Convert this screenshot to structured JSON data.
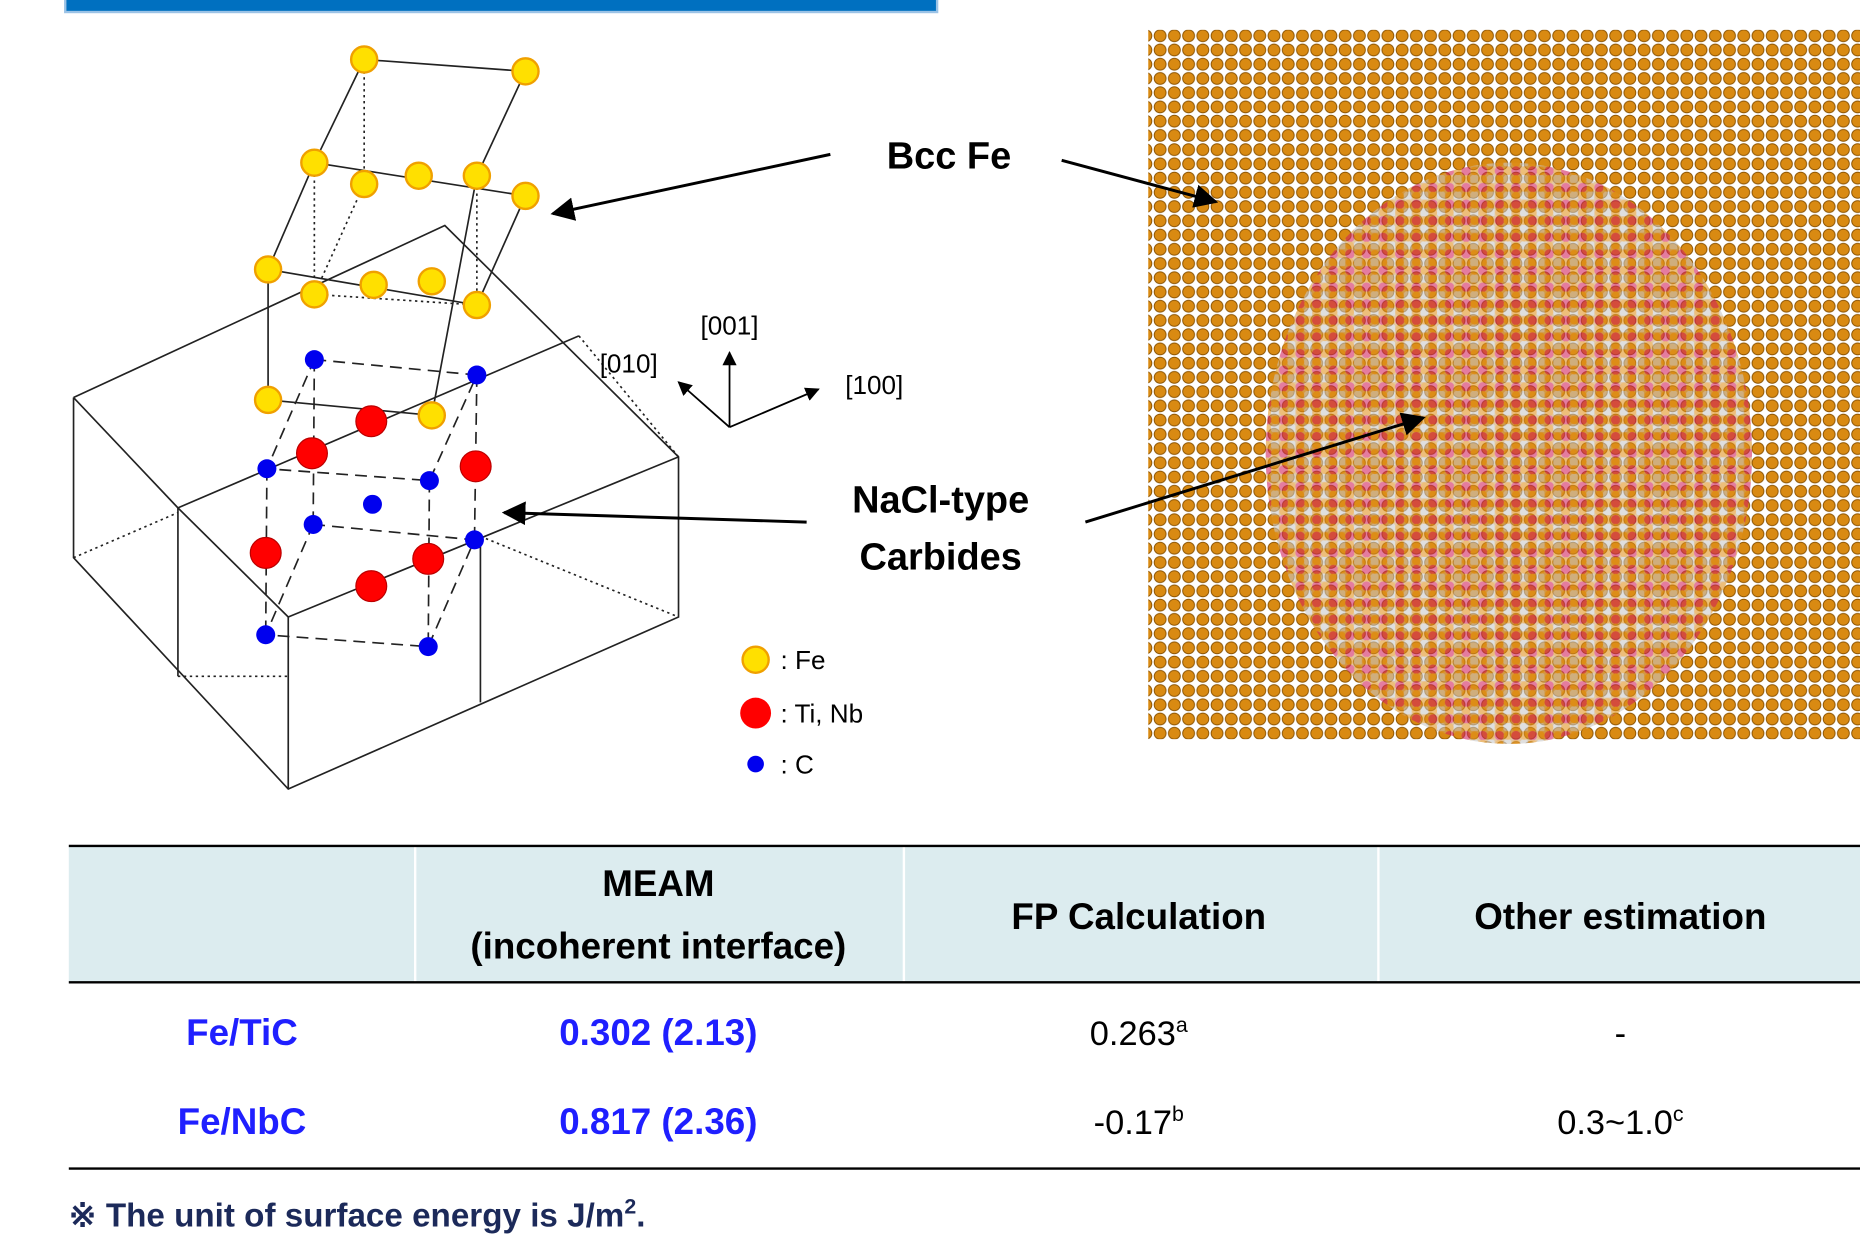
{
  "labels": {
    "bcc_fe": "Bcc Fe",
    "carbides": [
      "NaCl-type",
      "Carbides"
    ]
  },
  "axes": {
    "z": "[001]",
    "y": "[010]",
    "x": "[100]"
  },
  "legend": [
    ": Fe",
    ": Ti, Nb",
    ": C"
  ],
  "table": {
    "header": [
      [
        "MEAM",
        "(incoherent interface)"
      ],
      "FP Calculation",
      "Other estimation"
    ],
    "rows": [
      {
        "name": "Fe/TiC",
        "meam": "0.302 (2.13)",
        "fp": {
          "text": "0.263",
          "sup": "a"
        },
        "other": "-"
      },
      {
        "name": "Fe/NbC",
        "meam": "0.817 (2.36)",
        "fp": {
          "text": "-0.17",
          "sup": "b"
        },
        "other": {
          "text": "0.3~1.0",
          "sup": "c"
        }
      }
    ]
  },
  "footnote": {
    "text": "※ The unit of surface energy is J/m",
    "sup": "2",
    "end": "."
  }
}
